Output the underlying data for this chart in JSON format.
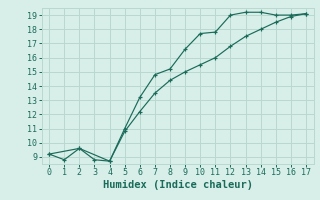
{
  "xlabel": "Humidex (Indice chaleur)",
  "ylabel": "",
  "bg_color": "#d8eee8",
  "grid_color": "#b8d8d0",
  "line_color": "#1a6b5a",
  "line1_x": [
    0,
    1,
    2,
    3,
    4,
    5,
    6,
    7,
    8,
    9,
    10,
    11,
    12,
    13,
    14,
    15,
    16,
    17
  ],
  "line1_y": [
    9.2,
    8.8,
    9.6,
    8.8,
    8.7,
    11.0,
    13.2,
    14.8,
    15.2,
    16.6,
    17.7,
    17.8,
    19.0,
    19.2,
    19.2,
    19.0,
    19.0,
    19.1
  ],
  "line2_x": [
    0,
    2,
    4,
    5,
    6,
    7,
    8,
    9,
    10,
    11,
    12,
    13,
    14,
    15,
    16,
    17
  ],
  "line2_y": [
    9.2,
    9.6,
    8.7,
    10.8,
    12.2,
    13.5,
    14.4,
    15.0,
    15.5,
    16.0,
    16.8,
    17.5,
    18.0,
    18.5,
    18.9,
    19.1
  ],
  "xlim": [
    -0.5,
    17.5
  ],
  "ylim": [
    8.5,
    19.5
  ],
  "xticks": [
    0,
    1,
    2,
    3,
    4,
    5,
    6,
    7,
    8,
    9,
    10,
    11,
    12,
    13,
    14,
    15,
    16,
    17
  ],
  "yticks": [
    9,
    10,
    11,
    12,
    13,
    14,
    15,
    16,
    17,
    18,
    19
  ],
  "tick_fontsize": 6.0,
  "xlabel_fontsize": 7.5
}
